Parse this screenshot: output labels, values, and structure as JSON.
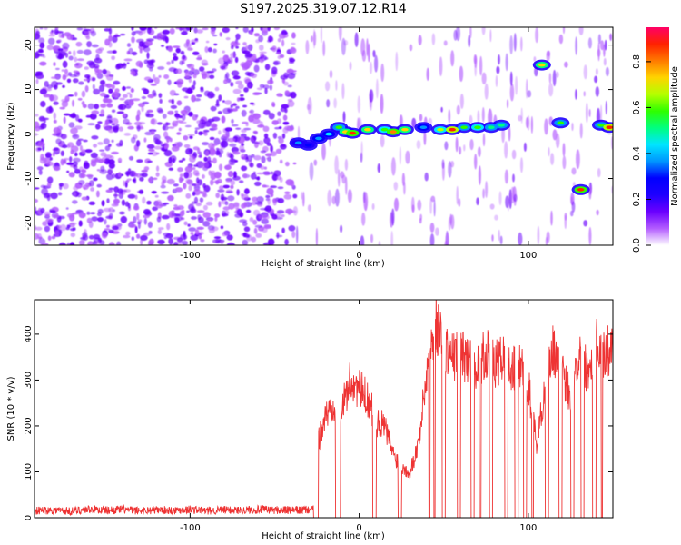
{
  "title": "S197.2025.319.07.12.R14",
  "chart_data": [
    {
      "type": "heatmap",
      "xlabel": "Height of straight line (km)",
      "ylabel": "Frequency (Hz)",
      "xlim": [
        -192,
        150
      ],
      "ylim": [
        -25,
        24
      ],
      "xticks": [
        -100,
        0,
        100
      ],
      "yticks": [
        20,
        10,
        0,
        -10,
        -20
      ],
      "colorbar": {
        "label": "Normalized spectral amplitude",
        "range": [
          0,
          0.95
        ],
        "ticks": [
          0,
          0.2,
          0.4,
          0.6,
          0.8
        ],
        "tick_labels": [
          "0.0",
          "0.2",
          "0.4",
          "0.6",
          "0.8"
        ],
        "colors": [
          "#ffffff",
          "#b35cff",
          "#6a00ff",
          "#1e00ff",
          "#0000ff",
          "#0096ff",
          "#00e5ff",
          "#00ff80",
          "#2eff00",
          "#b4ff00",
          "#ffd400",
          "#ff7a00",
          "#ff2200",
          "#ff0066"
        ]
      },
      "noise_region_x": [
        -192,
        -38
      ],
      "ridge": [
        {
          "x": -36,
          "f": -2,
          "a": 0.35
        },
        {
          "x": -30,
          "f": -2.5,
          "a": 0.3
        },
        {
          "x": -24,
          "f": -1,
          "a": 0.4
        },
        {
          "x": -18,
          "f": 0,
          "a": 0.45
        },
        {
          "x": -12,
          "f": 1.5,
          "a": 0.55
        },
        {
          "x": -8,
          "f": 0.5,
          "a": 0.7
        },
        {
          "x": -4,
          "f": 0.2,
          "a": 0.85
        },
        {
          "x": 5,
          "f": 1,
          "a": 0.75
        },
        {
          "x": 15,
          "f": 1,
          "a": 0.6
        },
        {
          "x": 20,
          "f": 0.5,
          "a": 0.8
        },
        {
          "x": 27,
          "f": 1,
          "a": 0.7
        },
        {
          "x": 38,
          "f": 1.5,
          "a": 0.4
        },
        {
          "x": 48,
          "f": 1,
          "a": 0.65
        },
        {
          "x": 55,
          "f": 1,
          "a": 0.9
        },
        {
          "x": 62,
          "f": 1.5,
          "a": 0.55
        },
        {
          "x": 70,
          "f": 1.5,
          "a": 0.6
        },
        {
          "x": 78,
          "f": 1.5,
          "a": 0.5
        },
        {
          "x": 84,
          "f": 2,
          "a": 0.5
        },
        {
          "x": 108,
          "f": 15.5,
          "a": 0.75
        },
        {
          "x": 119,
          "f": 2.5,
          "a": 0.55
        },
        {
          "x": 131,
          "f": -12.5,
          "a": 0.85
        },
        {
          "x": 143,
          "f": 2,
          "a": 0.55
        },
        {
          "x": 148,
          "f": 1.5,
          "a": 0.9
        }
      ]
    },
    {
      "type": "line",
      "xlabel": "Height of straight line (km)",
      "ylabel": "SNR (10 * v/v)",
      "xlim": [
        -192,
        150
      ],
      "ylim": [
        0,
        475
      ],
      "xticks": [
        -100,
        0,
        100
      ],
      "yticks": [
        0,
        100,
        200,
        300,
        400
      ],
      "color": "#ee3333",
      "series": [
        {
          "name": "SNR",
          "x": [
            -192,
            -180,
            -170,
            -160,
            -150,
            -140,
            -130,
            -120,
            -110,
            -100,
            -90,
            -80,
            -70,
            -60,
            -50,
            -40,
            -26,
            -24,
            -20,
            -15,
            -10,
            -5,
            0,
            5,
            10,
            15,
            20,
            25,
            30,
            35,
            40,
            45,
            50,
            55,
            60,
            65,
            70,
            75,
            80,
            85,
            90,
            95,
            100,
            105,
            110,
            115,
            120,
            125,
            130,
            135,
            140,
            145,
            150
          ],
          "y": [
            15,
            17,
            14,
            19,
            16,
            18,
            15,
            17,
            16,
            18,
            15,
            17,
            16,
            18,
            17,
            16,
            18,
            170,
            220,
            250,
            240,
            300,
            280,
            260,
            210,
            200,
            140,
            110,
            100,
            160,
            320,
            430,
            380,
            350,
            360,
            340,
            330,
            360,
            330,
            350,
            320,
            330,
            290,
            160,
            290,
            370,
            310,
            270,
            360,
            320,
            390,
            350,
            380
          ]
        }
      ],
      "dropouts": [
        [
          -27,
          -24
        ],
        [
          -14,
          -11
        ],
        [
          8,
          10
        ],
        [
          23,
          25
        ],
        [
          41,
          42
        ],
        [
          44,
          45
        ],
        [
          49,
          51
        ],
        [
          58,
          60
        ],
        [
          66,
          68
        ],
        [
          71,
          72
        ],
        [
          77,
          79
        ],
        [
          86,
          88
        ],
        [
          92,
          94
        ],
        [
          97,
          99
        ],
        [
          102,
          103
        ],
        [
          110,
          112
        ],
        [
          118,
          120
        ],
        [
          125,
          127
        ],
        [
          131,
          133
        ],
        [
          138,
          140
        ],
        [
          143,
          144
        ]
      ]
    }
  ]
}
